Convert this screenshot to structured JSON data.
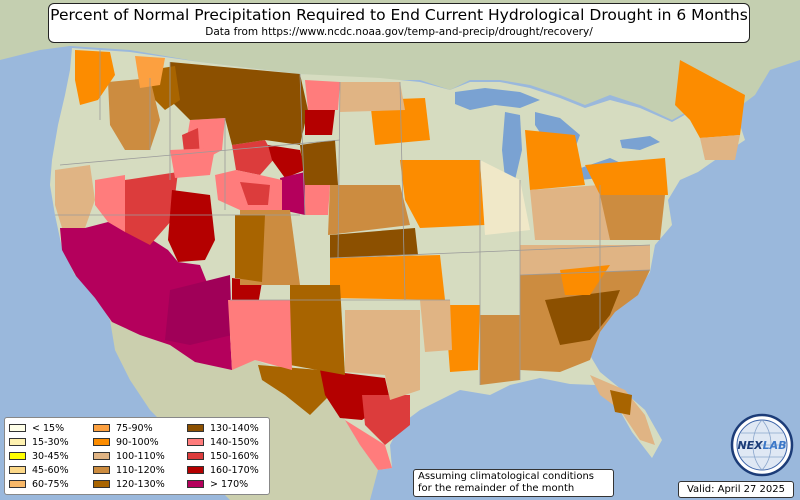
{
  "header": {
    "title": "Percent of Normal Precipitation Required to End Current Hydrological Drought in 6 Months",
    "subtitle": "Data from https://www.ncdc.noaa.gov/temp-and-precip/drought/recovery/"
  },
  "legend": {
    "items": [
      {
        "label": "< 15%",
        "color": "#ffffe8"
      },
      {
        "label": "15-30%",
        "color": "#fff2b0"
      },
      {
        "label": "30-45%",
        "color": "#ffff00"
      },
      {
        "label": "45-60%",
        "color": "#fcd888"
      },
      {
        "label": "60-75%",
        "color": "#f8b868"
      },
      {
        "label": "75-90%",
        "color": "#fca040"
      },
      {
        "label": "90-100%",
        "color": "#fc8c00"
      },
      {
        "label": "100-110%",
        "color": "#e0b484"
      },
      {
        "label": "110-120%",
        "color": "#cc8c40"
      },
      {
        "label": "120-130%",
        "color": "#a86400"
      },
      {
        "label": "130-140%",
        "color": "#8c5000"
      },
      {
        "label": "140-150%",
        "color": "#ff7c7c"
      },
      {
        "label": "150-160%",
        "color": "#dc3c3c"
      },
      {
        "label": "160-170%",
        "color": "#b40000"
      },
      {
        "label": "> 170%",
        "color": "#b4005c"
      }
    ]
  },
  "note": {
    "line1": "Assuming climatological conditions",
    "line2": "for the remainder of the month"
  },
  "valid": "Valid: April 27 2025",
  "logo": {
    "text": "NEXLAB",
    "label_left": "NEX",
    "label_right": "LAB"
  },
  "colors": {
    "ocean": "#9ab8dc",
    "land": "#d6dcc0",
    "lake": "#7aa2d2"
  }
}
